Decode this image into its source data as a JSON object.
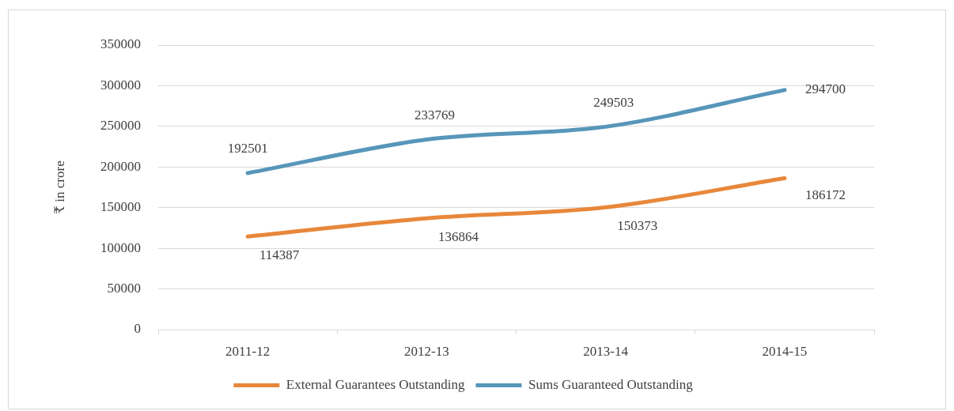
{
  "chart_data": {
    "type": "line",
    "ylabel": "₹ in crore",
    "categories": [
      "2011-12",
      "2012-13",
      "2013-14",
      "2014-15"
    ],
    "series": [
      {
        "name": "External Guarantees Outstanding",
        "color": "#e8873a",
        "values": [
          114387,
          136864,
          150373,
          186172
        ]
      },
      {
        "name": "Sums Guaranteed Outstanding",
        "color": "#5796b9",
        "values": [
          192501,
          233769,
          249503,
          294700
        ]
      }
    ],
    "ylim": [
      0,
      350000
    ],
    "yticks": [
      0,
      50000,
      100000,
      150000,
      200000,
      250000,
      300000,
      350000
    ],
    "grid": "y",
    "legend": "bottom",
    "data_labels": true
  }
}
